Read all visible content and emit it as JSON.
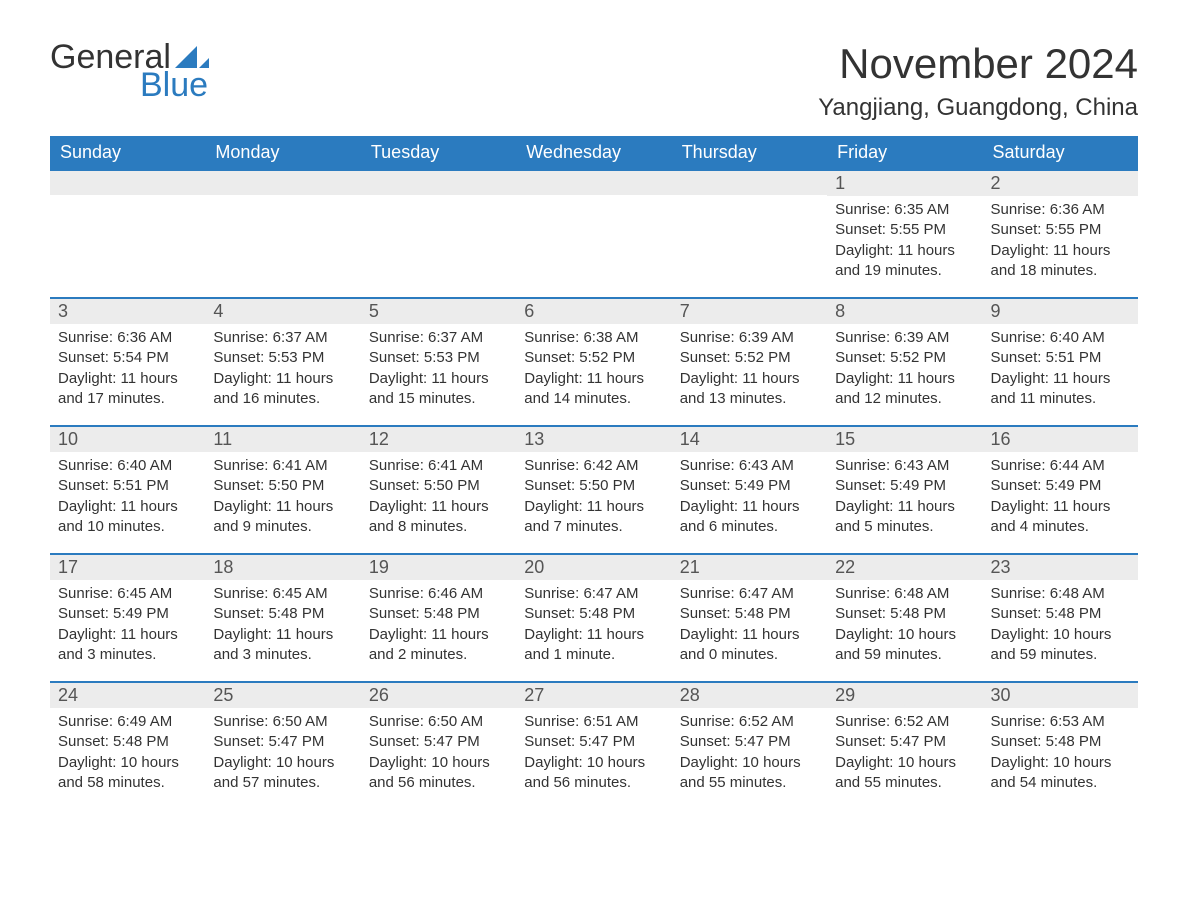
{
  "logo": {
    "word1": "General",
    "word2": "Blue"
  },
  "title": "November 2024",
  "location": "Yangjiang, Guangdong, China",
  "colors": {
    "header_bg": "#2b7bbf",
    "header_text": "#ffffff",
    "daybar_bg": "#ececec",
    "daybar_border": "#2b7bbf",
    "body_text": "#333333",
    "page_bg": "#ffffff",
    "logo_accent": "#2b7bbf"
  },
  "typography": {
    "title_fontsize": 42,
    "location_fontsize": 24,
    "header_fontsize": 18,
    "daynum_fontsize": 18,
    "body_fontsize": 15,
    "font_family": "Arial"
  },
  "weekdays": [
    "Sunday",
    "Monday",
    "Tuesday",
    "Wednesday",
    "Thursday",
    "Friday",
    "Saturday"
  ],
  "weeks": [
    [
      null,
      null,
      null,
      null,
      null,
      {
        "n": "1",
        "sunrise": "6:35 AM",
        "sunset": "5:55 PM",
        "daylight": "11 hours and 19 minutes."
      },
      {
        "n": "2",
        "sunrise": "6:36 AM",
        "sunset": "5:55 PM",
        "daylight": "11 hours and 18 minutes."
      }
    ],
    [
      {
        "n": "3",
        "sunrise": "6:36 AM",
        "sunset": "5:54 PM",
        "daylight": "11 hours and 17 minutes."
      },
      {
        "n": "4",
        "sunrise": "6:37 AM",
        "sunset": "5:53 PM",
        "daylight": "11 hours and 16 minutes."
      },
      {
        "n": "5",
        "sunrise": "6:37 AM",
        "sunset": "5:53 PM",
        "daylight": "11 hours and 15 minutes."
      },
      {
        "n": "6",
        "sunrise": "6:38 AM",
        "sunset": "5:52 PM",
        "daylight": "11 hours and 14 minutes."
      },
      {
        "n": "7",
        "sunrise": "6:39 AM",
        "sunset": "5:52 PM",
        "daylight": "11 hours and 13 minutes."
      },
      {
        "n": "8",
        "sunrise": "6:39 AM",
        "sunset": "5:52 PM",
        "daylight": "11 hours and 12 minutes."
      },
      {
        "n": "9",
        "sunrise": "6:40 AM",
        "sunset": "5:51 PM",
        "daylight": "11 hours and 11 minutes."
      }
    ],
    [
      {
        "n": "10",
        "sunrise": "6:40 AM",
        "sunset": "5:51 PM",
        "daylight": "11 hours and 10 minutes."
      },
      {
        "n": "11",
        "sunrise": "6:41 AM",
        "sunset": "5:50 PM",
        "daylight": "11 hours and 9 minutes."
      },
      {
        "n": "12",
        "sunrise": "6:41 AM",
        "sunset": "5:50 PM",
        "daylight": "11 hours and 8 minutes."
      },
      {
        "n": "13",
        "sunrise": "6:42 AM",
        "sunset": "5:50 PM",
        "daylight": "11 hours and 7 minutes."
      },
      {
        "n": "14",
        "sunrise": "6:43 AM",
        "sunset": "5:49 PM",
        "daylight": "11 hours and 6 minutes."
      },
      {
        "n": "15",
        "sunrise": "6:43 AM",
        "sunset": "5:49 PM",
        "daylight": "11 hours and 5 minutes."
      },
      {
        "n": "16",
        "sunrise": "6:44 AM",
        "sunset": "5:49 PM",
        "daylight": "11 hours and 4 minutes."
      }
    ],
    [
      {
        "n": "17",
        "sunrise": "6:45 AM",
        "sunset": "5:49 PM",
        "daylight": "11 hours and 3 minutes."
      },
      {
        "n": "18",
        "sunrise": "6:45 AM",
        "sunset": "5:48 PM",
        "daylight": "11 hours and 3 minutes."
      },
      {
        "n": "19",
        "sunrise": "6:46 AM",
        "sunset": "5:48 PM",
        "daylight": "11 hours and 2 minutes."
      },
      {
        "n": "20",
        "sunrise": "6:47 AM",
        "sunset": "5:48 PM",
        "daylight": "11 hours and 1 minute."
      },
      {
        "n": "21",
        "sunrise": "6:47 AM",
        "sunset": "5:48 PM",
        "daylight": "11 hours and 0 minutes."
      },
      {
        "n": "22",
        "sunrise": "6:48 AM",
        "sunset": "5:48 PM",
        "daylight": "10 hours and 59 minutes."
      },
      {
        "n": "23",
        "sunrise": "6:48 AM",
        "sunset": "5:48 PM",
        "daylight": "10 hours and 59 minutes."
      }
    ],
    [
      {
        "n": "24",
        "sunrise": "6:49 AM",
        "sunset": "5:48 PM",
        "daylight": "10 hours and 58 minutes."
      },
      {
        "n": "25",
        "sunrise": "6:50 AM",
        "sunset": "5:47 PM",
        "daylight": "10 hours and 57 minutes."
      },
      {
        "n": "26",
        "sunrise": "6:50 AM",
        "sunset": "5:47 PM",
        "daylight": "10 hours and 56 minutes."
      },
      {
        "n": "27",
        "sunrise": "6:51 AM",
        "sunset": "5:47 PM",
        "daylight": "10 hours and 56 minutes."
      },
      {
        "n": "28",
        "sunrise": "6:52 AM",
        "sunset": "5:47 PM",
        "daylight": "10 hours and 55 minutes."
      },
      {
        "n": "29",
        "sunrise": "6:52 AM",
        "sunset": "5:47 PM",
        "daylight": "10 hours and 55 minutes."
      },
      {
        "n": "30",
        "sunrise": "6:53 AM",
        "sunset": "5:48 PM",
        "daylight": "10 hours and 54 minutes."
      }
    ]
  ],
  "labels": {
    "sunrise": "Sunrise: ",
    "sunset": "Sunset: ",
    "daylight": "Daylight: "
  }
}
